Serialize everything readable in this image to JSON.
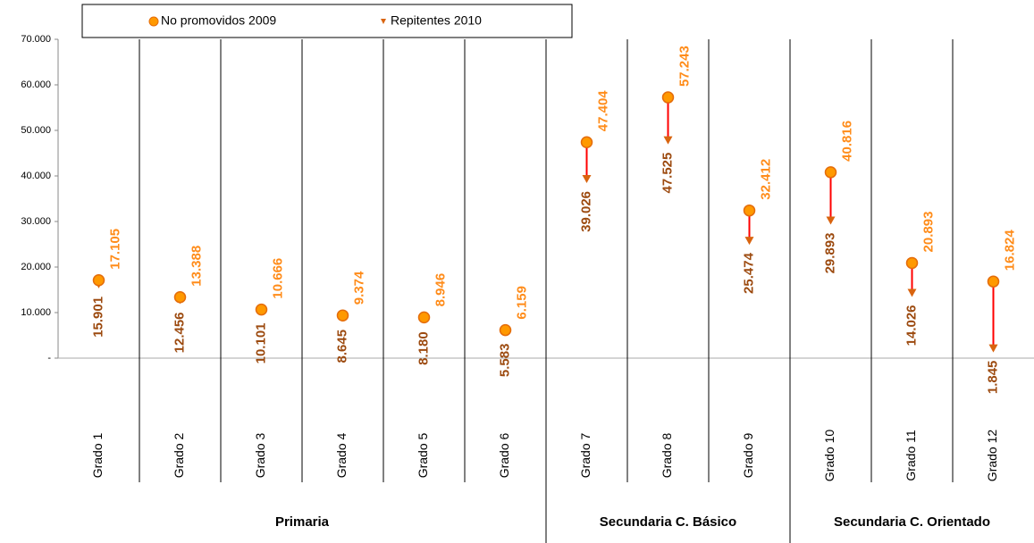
{
  "chart_data": {
    "type": "dumbbell",
    "categories": [
      "Grado 1",
      "Grado 2",
      "Grado 3",
      "Grado 4",
      "Grado 5",
      "Grado 6",
      "Grado 7",
      "Grado 8",
      "Grado 9",
      "Grado 10",
      "Grado 11",
      "Grado 12"
    ],
    "series": [
      {
        "name": "No promovidos 2009",
        "color": "#ff9900",
        "values": [
          17105,
          13388,
          10666,
          9374,
          8946,
          6159,
          47404,
          57243,
          32412,
          40816,
          20893,
          16824
        ],
        "value_labels": [
          "17.105",
          "13.388",
          "10.666",
          "9.374",
          "8.946",
          "6.159",
          "47.404",
          "57.243",
          "32.412",
          "40.816",
          "20.893",
          "16.824"
        ]
      },
      {
        "name": "Repitentes 2010",
        "color": "#d9640f",
        "values": [
          15901,
          12456,
          10101,
          8645,
          8180,
          5583,
          39026,
          47525,
          25474,
          29893,
          14026,
          1845
        ],
        "value_labels": [
          "15.901",
          "12.456",
          "10.101",
          "8.645",
          "8.180",
          "5.583",
          "39.026",
          "47.525",
          "25.474",
          "29.893",
          "14.026",
          "1.845"
        ]
      }
    ],
    "groups": [
      {
        "label": "Primaria",
        "count": 6
      },
      {
        "label": "Secundaria C. Básico",
        "count": 3
      },
      {
        "label": "Secundaria C. Orientado",
        "count": 3
      }
    ],
    "ylim": [
      0,
      70000
    ],
    "yticks": [
      {
        "value": 0,
        "label": "-"
      },
      {
        "value": 10000,
        "label": "10.000"
      },
      {
        "value": 20000,
        "label": "20.000"
      },
      {
        "value": 30000,
        "label": "30.000"
      },
      {
        "value": 40000,
        "label": "40.000"
      },
      {
        "value": 50000,
        "label": "50.000"
      },
      {
        "value": 60000,
        "label": "60.000"
      },
      {
        "value": 70000,
        "label": "70.000"
      }
    ],
    "legend": "top"
  }
}
